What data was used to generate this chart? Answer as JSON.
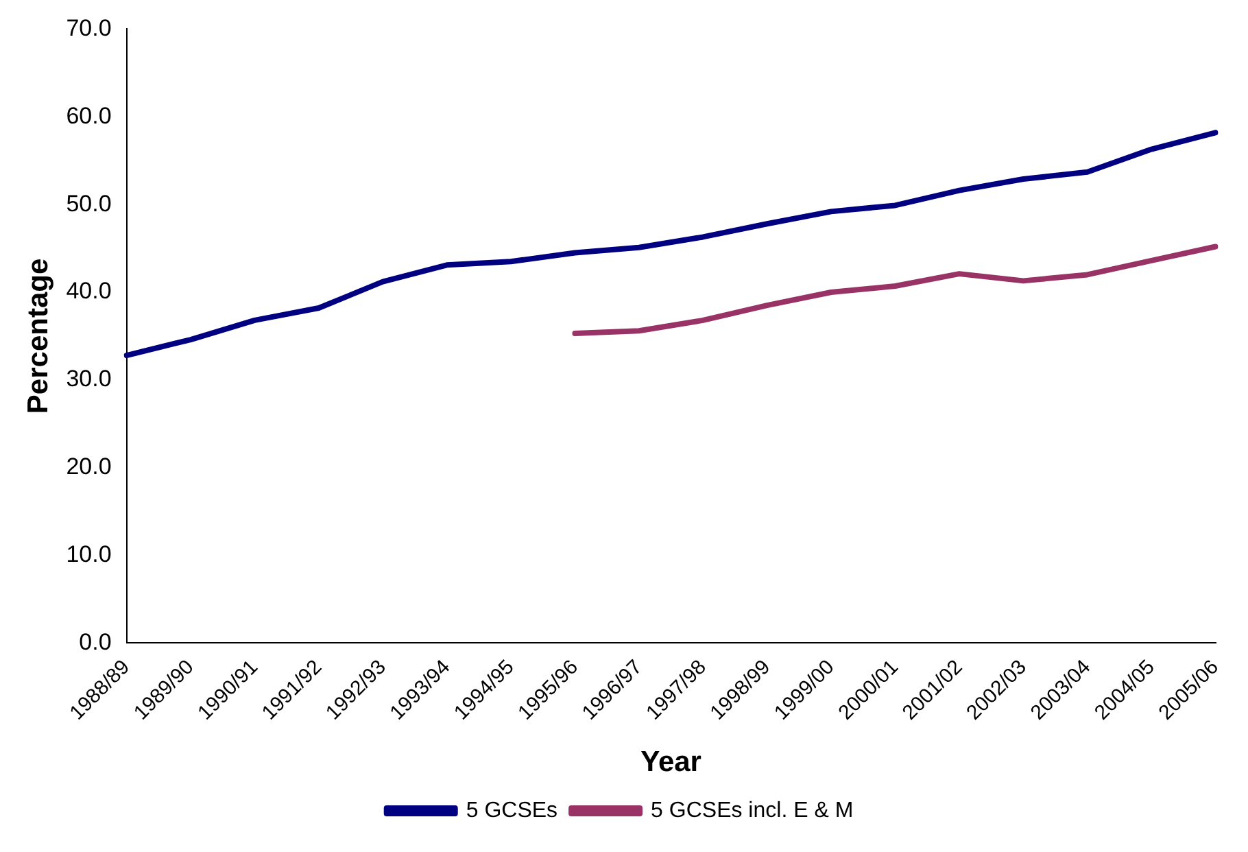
{
  "chart_data": {
    "type": "line",
    "xlabel": "Year",
    "ylabel": "Percentage",
    "categories": [
      "1988/89",
      "1989/90",
      "1990/91",
      "1991/92",
      "1992/93",
      "1993/94",
      "1994/95",
      "1995/96",
      "1996/97",
      "1997/98",
      "1998/99",
      "1999/00",
      "2000/01",
      "2001/02",
      "2002/03",
      "2003/04",
      "2004/05",
      "2005/06"
    ],
    "series": [
      {
        "name": "5 GCSEs",
        "color": "#000080",
        "values": [
          32.8,
          34.6,
          36.8,
          38.2,
          41.2,
          43.1,
          43.5,
          44.5,
          45.1,
          46.3,
          47.8,
          49.2,
          49.9,
          51.6,
          52.9,
          53.7,
          56.3,
          58.2
        ]
      },
      {
        "name": "5 GCSEs incl. E & M",
        "color": "#993366",
        "values": [
          null,
          null,
          null,
          null,
          null,
          null,
          null,
          35.3,
          35.6,
          36.8,
          38.5,
          40.0,
          40.7,
          42.1,
          41.3,
          42.0,
          43.6,
          45.2
        ]
      }
    ],
    "ylim": [
      0,
      70
    ],
    "yticks": [
      {
        "value": 0,
        "label": "0.0"
      },
      {
        "value": 10,
        "label": "10.0"
      },
      {
        "value": 20,
        "label": "20.0"
      },
      {
        "value": 30,
        "label": "30.0"
      },
      {
        "value": 40,
        "label": "40.0"
      },
      {
        "value": 50,
        "label": "50.0"
      },
      {
        "value": 60,
        "label": "60.0"
      },
      {
        "value": 70,
        "label": "70.0"
      }
    ],
    "grid": false,
    "legend": "bottom",
    "marker": "none",
    "line_style": "solid"
  }
}
